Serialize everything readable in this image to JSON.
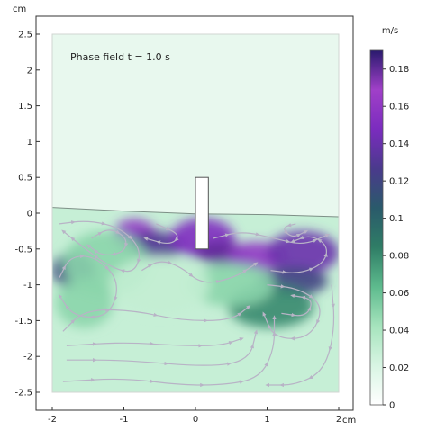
{
  "chart_data": {
    "type": "heatmap",
    "title": "Phase field t = 1.0 s",
    "x_unit": "cm",
    "y_unit": "cm",
    "xlim": [
      -2.0,
      2.0
    ],
    "ylim": [
      -2.5,
      2.5
    ],
    "x_ticks": [
      -2,
      -1,
      0,
      1,
      2
    ],
    "x_tick_labels": [
      "-2",
      "-1",
      "0",
      "1",
      "2"
    ],
    "y_ticks": [
      -2.5,
      -2,
      -1.5,
      -1,
      -0.5,
      0,
      0.5,
      1,
      1.5,
      2,
      2.5
    ],
    "y_tick_labels": [
      "-2.5",
      "-2",
      "-1.5",
      "-1",
      "-0.5",
      "0",
      "0.5",
      "1",
      "1.5",
      "2",
      "2.5"
    ],
    "colorbar": {
      "unit": "m/s",
      "range": [
        0,
        0.19
      ],
      "ticks": [
        0,
        0.02,
        0.04,
        0.06,
        0.08,
        0.1,
        0.12,
        0.14,
        0.16,
        0.18
      ],
      "tick_labels": [
        "0",
        "0.02",
        "0.04",
        "0.06",
        "0.08",
        "0.1",
        "0.12",
        "0.14",
        "0.16",
        "0.18"
      ],
      "colors": [
        "#ffffff",
        "#d8f5e3",
        "#a6e4bd",
        "#5dba8d",
        "#2f7d66",
        "#2a5a6b",
        "#4a3a8c",
        "#7b2cbf",
        "#a040c8",
        "#2a1a6e"
      ]
    },
    "interface_level": [
      [
        -2.0,
        0.08
      ],
      [
        -1.0,
        0.03
      ],
      [
        0.0,
        -0.01
      ],
      [
        1.0,
        -0.02
      ],
      [
        2.0,
        -0.05
      ]
    ],
    "baffle": {
      "x": [
        0.0,
        0.18
      ],
      "y": [
        -0.5,
        0.5
      ]
    },
    "velocity_blobs": [
      {
        "x": -0.85,
        "y": -0.3,
        "rx": 0.3,
        "ry": 0.22,
        "speed": 0.16
      },
      {
        "x": -0.55,
        "y": -0.45,
        "rx": 0.4,
        "ry": 0.2,
        "speed": 0.13
      },
      {
        "x": 0.1,
        "y": -0.35,
        "rx": 0.45,
        "ry": 0.28,
        "speed": 0.15
      },
      {
        "x": 0.35,
        "y": -0.55,
        "rx": 0.35,
        "ry": 0.16,
        "speed": 0.18
      },
      {
        "x": 0.85,
        "y": -0.6,
        "rx": 0.4,
        "ry": 0.2,
        "speed": 0.16
      },
      {
        "x": 1.5,
        "y": -0.55,
        "rx": 0.5,
        "ry": 0.3,
        "speed": 0.14
      },
      {
        "x": 1.35,
        "y": -0.95,
        "rx": 0.5,
        "ry": 0.2,
        "speed": 0.12
      },
      {
        "x": 1.05,
        "y": -1.3,
        "rx": 0.6,
        "ry": 0.3,
        "speed": 0.08
      },
      {
        "x": -1.7,
        "y": -0.8,
        "rx": 0.3,
        "ry": 0.25,
        "speed": 0.12
      },
      {
        "x": -1.25,
        "y": -0.7,
        "rx": 0.6,
        "ry": 0.45,
        "speed": 0.05
      },
      {
        "x": -1.55,
        "y": -1.25,
        "rx": 0.4,
        "ry": 0.35,
        "speed": 0.05
      },
      {
        "x": 0.5,
        "y": -1.0,
        "rx": 0.6,
        "ry": 0.3,
        "speed": 0.05
      },
      {
        "x": -0.5,
        "y": -1.0,
        "rx": 0.7,
        "ry": 0.4,
        "speed": 0.03
      }
    ],
    "streamlines": [
      [
        [
          -1.9,
          -0.15
        ],
        [
          -1.5,
          -0.1
        ],
        [
          -1.05,
          -0.2
        ],
        [
          -0.75,
          -0.5
        ],
        [
          -0.85,
          -0.85
        ],
        [
          -1.2,
          -0.75
        ],
        [
          -1.6,
          -0.45
        ],
        [
          -1.85,
          -0.25
        ]
      ],
      [
        [
          -1.45,
          -0.35
        ],
        [
          -1.2,
          -0.2
        ],
        [
          -0.95,
          -0.35
        ],
        [
          -1.0,
          -0.55
        ],
        [
          -1.3,
          -0.6
        ],
        [
          -1.5,
          -0.45
        ]
      ],
      [
        [
          -1.9,
          -0.9
        ],
        [
          -1.75,
          -0.6
        ],
        [
          -1.4,
          -0.6
        ],
        [
          -1.05,
          -0.95
        ],
        [
          -1.2,
          -1.45
        ],
        [
          -1.7,
          -1.45
        ],
        [
          -1.9,
          -1.15
        ]
      ],
      [
        [
          -1.85,
          -1.65
        ],
        [
          -1.55,
          -1.35
        ],
        [
          -0.9,
          -1.35
        ],
        [
          -0.2,
          -1.5
        ],
        [
          0.5,
          -1.5
        ],
        [
          0.75,
          -1.3
        ]
      ],
      [
        [
          -1.8,
          -1.85
        ],
        [
          -1.0,
          -1.8
        ],
        [
          -0.2,
          -1.85
        ],
        [
          0.35,
          -1.85
        ],
        [
          0.65,
          -1.75
        ]
      ],
      [
        [
          -1.85,
          -2.35
        ],
        [
          -1.0,
          -2.3
        ],
        [
          -0.2,
          -2.4
        ],
        [
          0.4,
          -2.4
        ],
        [
          0.9,
          -2.3
        ],
        [
          1.1,
          -1.9
        ],
        [
          1.1,
          -1.45
        ]
      ],
      [
        [
          -1.8,
          -2.05
        ],
        [
          -1.0,
          -2.05
        ],
        [
          0.2,
          -2.15
        ],
        [
          0.75,
          -2.05
        ],
        [
          0.85,
          -1.65
        ]
      ],
      [
        [
          -0.75,
          -0.8
        ],
        [
          -0.5,
          -0.65
        ],
        [
          -0.2,
          -0.75
        ],
        [
          0.1,
          -1.0
        ],
        [
          0.55,
          -0.9
        ],
        [
          0.85,
          -0.7
        ]
      ],
      [
        [
          0.25,
          -0.35
        ],
        [
          0.65,
          -0.25
        ],
        [
          1.1,
          -0.35
        ],
        [
          1.5,
          -0.45
        ],
        [
          1.85,
          -0.3
        ]
      ],
      [
        [
          1.05,
          -0.8
        ],
        [
          1.45,
          -0.85
        ],
        [
          1.8,
          -0.7
        ],
        [
          1.85,
          -0.45
        ],
        [
          1.6,
          -0.3
        ],
        [
          1.35,
          -0.4
        ]
      ],
      [
        [
          1.0,
          -1.0
        ],
        [
          1.45,
          -1.05
        ],
        [
          1.8,
          -1.3
        ],
        [
          1.6,
          -1.75
        ],
        [
          1.1,
          -1.75
        ],
        [
          0.95,
          -1.4
        ]
      ],
      [
        [
          1.2,
          -1.4
        ],
        [
          1.55,
          -1.45
        ],
        [
          1.65,
          -1.2
        ],
        [
          1.35,
          -1.15
        ]
      ],
      [
        [
          1.9,
          -1.0
        ],
        [
          1.95,
          -1.6
        ],
        [
          1.8,
          -2.2
        ],
        [
          1.4,
          -2.4
        ],
        [
          1.0,
          -2.4
        ]
      ],
      [
        [
          -0.55,
          -0.15
        ],
        [
          -0.2,
          -0.3
        ],
        [
          -0.35,
          -0.45
        ],
        [
          -0.7,
          -0.35
        ]
      ],
      [
        [
          1.4,
          -0.15
        ],
        [
          1.2,
          -0.2
        ],
        [
          1.35,
          -0.35
        ],
        [
          1.55,
          -0.25
        ]
      ]
    ]
  }
}
